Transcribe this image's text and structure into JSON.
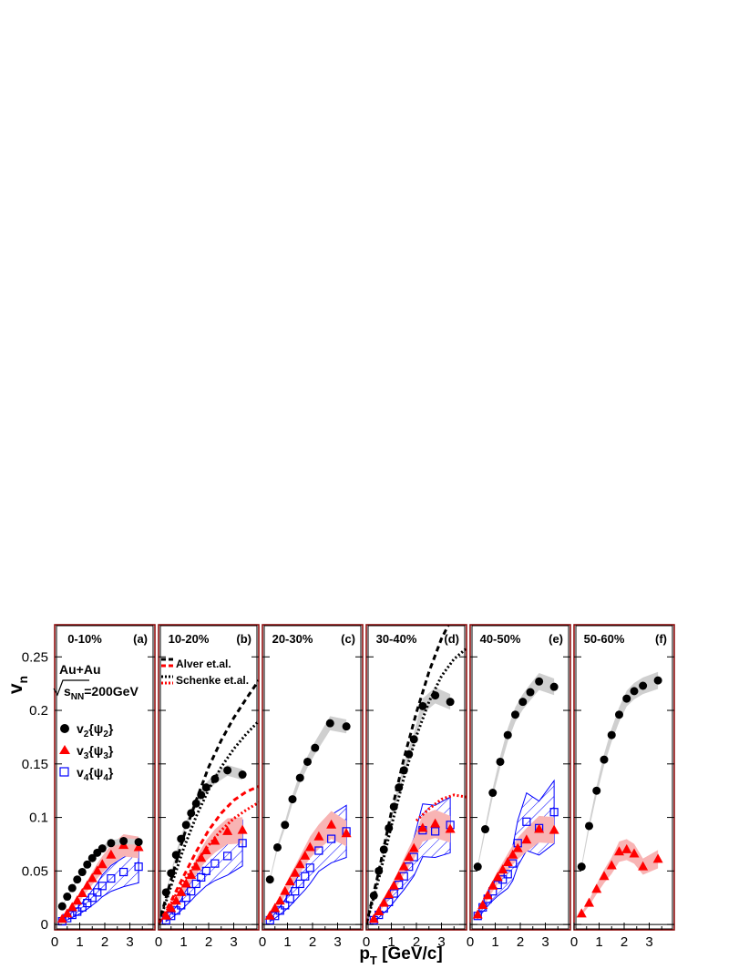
{
  "figure": {
    "ylabel_main": "v",
    "ylabel_sub": "n",
    "xlabel_main": "p",
    "xlabel_sub": "T",
    "xlabel_unit": " [GeV/c]",
    "system": "Au+Au",
    "energy_sub": "NN",
    "energy_text": "=200GeV",
    "legend": [
      {
        "name": "v2{ψ2}",
        "v": "v",
        "n": "2",
        "psi": "{ψ",
        "m": "2",
        "close": "}",
        "marker": "circle"
      },
      {
        "name": "v3{ψ3}",
        "v": "v",
        "n": "3",
        "psi": "{ψ",
        "m": "3",
        "close": "}",
        "marker": "triangle"
      },
      {
        "name": "v4{ψ4}",
        "v": "v",
        "n": "4",
        "psi": "{ψ",
        "m": "4",
        "close": "}",
        "marker": "open-square"
      }
    ],
    "model_legend": [
      {
        "name": "Alver et.al.",
        "style": "dashed"
      },
      {
        "name": "Schenke et.al.",
        "style": "dotted"
      }
    ],
    "colors": {
      "v2": "#000000",
      "v3": "#ff0000",
      "v4": "#0000ff",
      "frame_outer": "#8b0000",
      "band_v2": "#cfcfcf",
      "band_v3": "#f8b4b4"
    }
  },
  "chart_data": {
    "type": "scatter",
    "xlabel": "pT [GeV/c]",
    "ylabel": "vn",
    "xlim": [
      0,
      4
    ],
    "ylim": [
      -0.005,
      0.28
    ],
    "xticks": [
      0,
      1,
      2,
      3
    ],
    "yticks": [
      0,
      0.05,
      0.1,
      0.15,
      0.2,
      0.25
    ],
    "ytick_labels": [
      "0",
      "0.05",
      "0.1",
      "0.15",
      "0.2",
      "0.25"
    ],
    "panels": [
      {
        "label": "0-10%",
        "tag": "(a)",
        "series": [
          {
            "name": "v2{ψ2}",
            "x": [
              0.3,
              0.5,
              0.7,
              0.9,
              1.1,
              1.3,
              1.5,
              1.7,
              1.9,
              2.25,
              2.75,
              3.35
            ],
            "y": [
              0.017,
              0.026,
              0.034,
              0.042,
              0.049,
              0.056,
              0.062,
              0.067,
              0.071,
              0.076,
              0.078,
              0.077
            ]
          },
          {
            "name": "v3{ψ3}",
            "x": [
              0.3,
              0.5,
              0.7,
              0.9,
              1.1,
              1.3,
              1.5,
              1.7,
              1.9,
              2.25,
              2.75,
              3.35
            ],
            "y": [
              0.005,
              0.01,
              0.016,
              0.022,
              0.029,
              0.036,
              0.043,
              0.05,
              0.056,
              0.065,
              0.074,
              0.072
            ]
          },
          {
            "name": "v4{ψ4}",
            "x": [
              0.3,
              0.5,
              0.7,
              0.9,
              1.1,
              1.3,
              1.5,
              1.7,
              1.9,
              2.25,
              2.75,
              3.35
            ],
            "y": [
              0.003,
              0.006,
              0.009,
              0.012,
              0.016,
              0.02,
              0.025,
              0.03,
              0.036,
              0.043,
              0.049,
              0.054
            ]
          }
        ]
      },
      {
        "label": "10-20%",
        "tag": "(b)",
        "series": [
          {
            "name": "v2{ψ2}",
            "x": [
              0.3,
              0.5,
              0.7,
              0.9,
              1.1,
              1.3,
              1.5,
              1.7,
              1.9,
              2.25,
              2.75,
              3.35
            ],
            "y": [
              0.03,
              0.048,
              0.065,
              0.08,
              0.093,
              0.104,
              0.113,
              0.121,
              0.128,
              0.136,
              0.144,
              0.14
            ]
          },
          {
            "name": "v3{ψ3}",
            "x": [
              0.3,
              0.5,
              0.7,
              0.9,
              1.1,
              1.3,
              1.5,
              1.7,
              1.9,
              2.25,
              2.75,
              3.35
            ],
            "y": [
              0.008,
              0.015,
              0.022,
              0.03,
              0.038,
              0.046,
              0.054,
              0.062,
              0.069,
              0.078,
              0.087,
              0.088
            ]
          },
          {
            "name": "v4{ψ4}",
            "x": [
              0.3,
              0.5,
              0.7,
              0.9,
              1.1,
              1.3,
              1.5,
              1.7,
              1.9,
              2.25,
              2.75,
              3.35
            ],
            "y": [
              0.004,
              0.008,
              0.013,
              0.018,
              0.025,
              0.031,
              0.038,
              0.044,
              0.05,
              0.057,
              0.064,
              0.076
            ]
          }
        ],
        "models": [
          {
            "name": "Alver v2",
            "style": "dashed",
            "color": "#000000",
            "x": [
              0,
              0.5,
              1,
              1.5,
              2,
              2.5,
              3,
              3.5,
              4
            ],
            "y": [
              0,
              0.042,
              0.082,
              0.116,
              0.147,
              0.172,
              0.193,
              0.211,
              0.228
            ]
          },
          {
            "name": "Alver v3",
            "style": "dashed",
            "color": "#ff0000",
            "x": [
              0,
              0.5,
              1,
              1.5,
              2,
              2.5,
              3,
              3.5,
              4
            ],
            "y": [
              0,
              0.022,
              0.045,
              0.068,
              0.088,
              0.104,
              0.116,
              0.124,
              0.129
            ]
          },
          {
            "name": "Schenke v2",
            "style": "dotted",
            "color": "#000000",
            "x": [
              0,
              0.5,
              1,
              1.5,
              2,
              2.5,
              3,
              3.5,
              4
            ],
            "y": [
              0,
              0.036,
              0.071,
              0.101,
              0.126,
              0.147,
              0.164,
              0.178,
              0.19
            ]
          },
          {
            "name": "Schenke v3",
            "style": "dotted",
            "color": "#ff0000",
            "x": [
              0,
              0.5,
              1,
              1.5,
              2,
              2.5,
              3,
              3.5,
              4
            ],
            "y": [
              0,
              0.02,
              0.04,
              0.058,
              0.074,
              0.088,
              0.099,
              0.107,
              0.114
            ]
          }
        ]
      },
      {
        "label": "20-30%",
        "tag": "(c)",
        "series": [
          {
            "name": "v2{ψ2}",
            "x": [
              0.3,
              0.6,
              0.9,
              1.2,
              1.5,
              1.8,
              2.1,
              2.7,
              3.35
            ],
            "y": [
              0.042,
              0.072,
              0.093,
              0.117,
              0.137,
              0.152,
              0.165,
              0.188,
              0.185
            ]
          },
          {
            "name": "v3{ψ3}",
            "x": [
              0.3,
              0.5,
              0.7,
              0.9,
              1.1,
              1.3,
              1.5,
              1.7,
              1.9,
              2.25,
              2.75,
              3.35
            ],
            "y": [
              0.008,
              0.015,
              0.022,
              0.031,
              0.04,
              0.048,
              0.056,
              0.064,
              0.072,
              0.082,
              0.093,
              0.085
            ]
          },
          {
            "name": "v4{ψ4}",
            "x": [
              0.3,
              0.5,
              0.7,
              0.9,
              1.1,
              1.3,
              1.5,
              1.7,
              1.9,
              2.25,
              2.75,
              3.35
            ],
            "y": [
              0.004,
              0.008,
              0.013,
              0.018,
              0.024,
              0.031,
              0.038,
              0.045,
              0.053,
              0.069,
              0.08,
              0.087
            ]
          }
        ]
      },
      {
        "label": "30-40%",
        "tag": "(d)",
        "series": [
          {
            "name": "v2{ψ2}",
            "x": [
              0.3,
              0.5,
              0.7,
              0.9,
              1.1,
              1.3,
              1.5,
              1.7,
              1.9,
              2.25,
              2.75,
              3.35
            ],
            "y": [
              0.027,
              0.05,
              0.07,
              0.09,
              0.11,
              0.128,
              0.144,
              0.159,
              0.173,
              0.204,
              0.214,
              0.208
            ]
          },
          {
            "name": "v3{ψ3}",
            "x": [
              0.3,
              0.5,
              0.7,
              0.9,
              1.1,
              1.3,
              1.5,
              1.7,
              1.9,
              2.25,
              2.75,
              3.35
            ],
            "y": [
              0.005,
              0.012,
              0.02,
              0.028,
              0.036,
              0.045,
              0.054,
              0.063,
              0.071,
              0.09,
              0.094,
              0.089
            ]
          },
          {
            "name": "v4{ψ4}",
            "x": [
              0.3,
              0.5,
              0.7,
              0.9,
              1.1,
              1.3,
              1.5,
              1.7,
              1.9,
              2.25,
              2.75,
              3.35
            ],
            "y": [
              0.004,
              0.009,
              0.015,
              0.021,
              0.029,
              0.037,
              0.045,
              0.054,
              0.063,
              0.088,
              0.087,
              0.093
            ]
          }
        ],
        "models": [
          {
            "name": "Alver v2",
            "style": "dashed",
            "color": "#000000",
            "x": [
              0,
              0.5,
              1,
              1.5,
              2,
              2.5,
              3,
              3.5
            ],
            "y": [
              0,
              0.05,
              0.105,
              0.155,
              0.198,
              0.236,
              0.267,
              0.29
            ]
          },
          {
            "name": "Schenke v2",
            "style": "dotted",
            "color": "#000000",
            "x": [
              0,
              0.5,
              1,
              1.5,
              2,
              2.5,
              3,
              3.5,
              4
            ],
            "y": [
              0,
              0.043,
              0.092,
              0.137,
              0.176,
              0.208,
              0.232,
              0.248,
              0.258
            ]
          },
          {
            "name": "Schenke v3",
            "style": "dotted",
            "color": "#ff0000",
            "x": [
              2,
              2.5,
              3,
              3.5,
              4
            ],
            "y": [
              0.097,
              0.108,
              0.117,
              0.121,
              0.119
            ]
          }
        ]
      },
      {
        "label": "40-50%",
        "tag": "(e)",
        "series": [
          {
            "name": "v2{ψ2}",
            "x": [
              0.3,
              0.6,
              0.9,
              1.2,
              1.5,
              1.8,
              2.1,
              2.4,
              2.75,
              3.35
            ],
            "y": [
              0.054,
              0.089,
              0.123,
              0.152,
              0.177,
              0.196,
              0.208,
              0.217,
              0.227,
              0.222
            ]
          },
          {
            "name": "v3{ψ3}",
            "x": [
              0.3,
              0.5,
              0.7,
              0.9,
              1.1,
              1.3,
              1.5,
              1.7,
              1.9,
              2.25,
              2.75,
              3.35
            ],
            "y": [
              0.009,
              0.018,
              0.027,
              0.036,
              0.044,
              0.051,
              0.058,
              0.065,
              0.071,
              0.079,
              0.089,
              0.088
            ]
          },
          {
            "name": "v4{ψ4}",
            "x": [
              0.3,
              0.5,
              0.7,
              0.9,
              1.1,
              1.3,
              1.5,
              1.7,
              1.9,
              2.25,
              2.75,
              3.35
            ],
            "y": [
              0.008,
              0.016,
              0.024,
              0.031,
              0.037,
              0.042,
              0.047,
              0.057,
              0.076,
              0.096,
              0.09,
              0.105
            ]
          }
        ]
      },
      {
        "label": "50-60%",
        "tag": "(f)",
        "series": [
          {
            "name": "v2{ψ2}",
            "x": [
              0.3,
              0.6,
              0.9,
              1.2,
              1.5,
              1.8,
              2.1,
              2.4,
              2.75,
              3.35
            ],
            "y": [
              0.054,
              0.092,
              0.125,
              0.154,
              0.177,
              0.196,
              0.211,
              0.218,
              0.223,
              0.228
            ]
          },
          {
            "name": "v3{ψ3}",
            "x": [
              0.3,
              0.6,
              0.9,
              1.2,
              1.5,
              1.8,
              2.1,
              2.4,
              2.75,
              3.35
            ],
            "y": [
              0.01,
              0.02,
              0.033,
              0.045,
              0.055,
              0.068,
              0.07,
              0.066,
              0.054,
              0.061
            ]
          }
        ]
      }
    ]
  }
}
